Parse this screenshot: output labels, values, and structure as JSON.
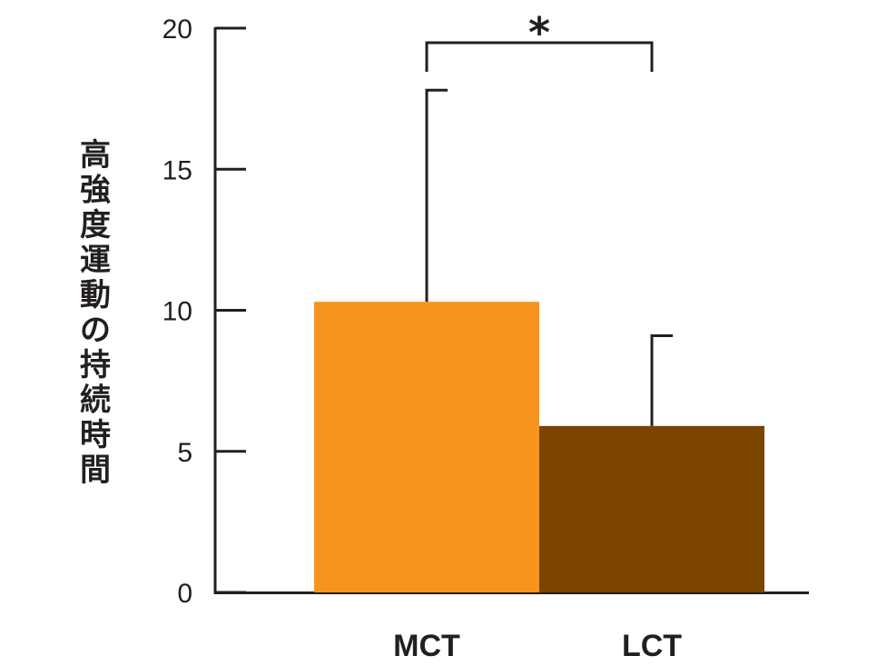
{
  "chart_data": {
    "type": "bar",
    "title": "",
    "xlabel": "",
    "ylabel": "高強度運動の持続時間",
    "ylim": [
      0,
      20
    ],
    "yticks": [
      0,
      5,
      10,
      15,
      20
    ],
    "categories": [
      "MCT",
      "LCT"
    ],
    "values": [
      10.3,
      5.9
    ],
    "errors": [
      7.5,
      3.2
    ],
    "colors": [
      "#f7941e",
      "#7b4500"
    ],
    "grid": false,
    "legend": "none",
    "annotations": [
      {
        "type": "significance_bracket",
        "between": [
          "MCT",
          "LCT"
        ],
        "label": "*"
      }
    ]
  }
}
